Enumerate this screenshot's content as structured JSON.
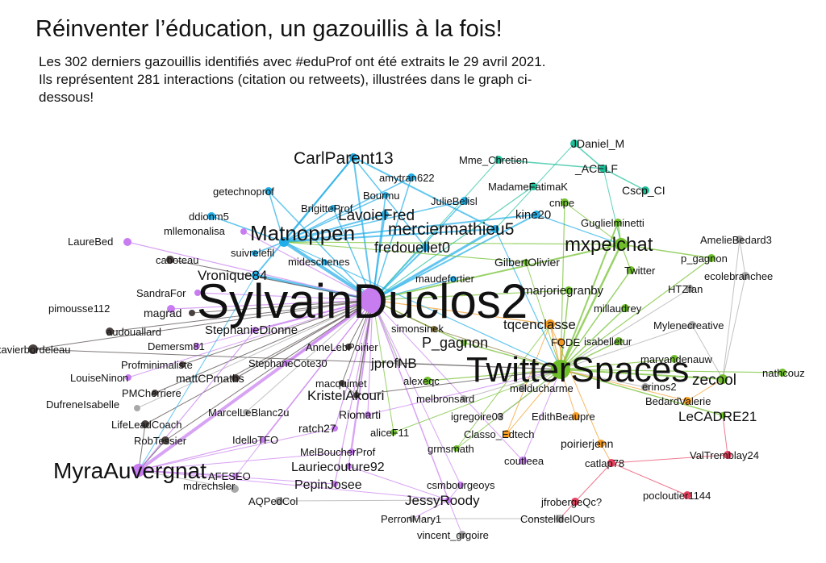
{
  "header": {
    "title": "Réinventer l’éducation, un gazouillis à la fois!",
    "subtitle": "Les 302 derniers gazouillis identifiés avec #eduProf  ont été extraits le 29 avril 2021. Ils représentent 281 interactions (citation ou retweets), illustrées dans le graph ci-dessous!"
  },
  "graph": {
    "community_colors": {
      "purple": "#c77cf0",
      "blue": "#22aee8",
      "teal": "#1dbf9a",
      "green": "#6fbf2a",
      "orange": "#f39a22",
      "red": "#e8405f",
      "dark": "#4a4240",
      "gray": "#a8a8a8",
      "olive": "#8a7a40"
    },
    "nodes": [
      {
        "id": "SylvainDuclos2",
        "label": "SylvainDuclos2",
        "community": "purple"
      },
      {
        "id": "TwitterSpaces",
        "label": "TwitterSpaces",
        "community": "green"
      },
      {
        "id": "MyraAuvergnat",
        "label": "MyraAuvergnat",
        "community": "purple"
      },
      {
        "id": "Matnoppen",
        "label": "Matnoppen",
        "community": "blue"
      },
      {
        "id": "mxpelchat",
        "label": "mxpelchat",
        "community": "green"
      },
      {
        "id": "CarlParent13",
        "label": "CarlParent13",
        "community": "blue"
      },
      {
        "id": "merciermathieu5",
        "label": "merciermathieu5",
        "community": "blue"
      },
      {
        "id": "LavoieFred",
        "label": "LavoieFred",
        "community": "blue"
      },
      {
        "id": "fredouellet0",
        "label": "fredouellet0",
        "community": "blue"
      },
      {
        "id": "Vronique84",
        "label": "Vronique84",
        "community": "blue"
      },
      {
        "id": "zecool",
        "label": "zecool",
        "community": "green"
      },
      {
        "id": "LeCADRE21",
        "label": "LeCADRE21",
        "community": "green"
      },
      {
        "id": "P_gagnon",
        "label": "P_gagnon",
        "community": "green"
      },
      {
        "id": "tqcenclasse",
        "label": "tqcenclasse",
        "community": "orange"
      },
      {
        "id": "jprofNB",
        "label": "jprofNB",
        "community": "gray"
      },
      {
        "id": "KristelAkouri",
        "label": "KristelAkouri",
        "community": "dark"
      },
      {
        "id": "JessyRoody",
        "label": "JessyRoody",
        "community": "purple"
      },
      {
        "id": "PepinJosee",
        "label": "PepinJosee",
        "community": "purple"
      },
      {
        "id": "Lauriecouture92",
        "label": "Lauriecouture92",
        "community": "purple"
      },
      {
        "id": "StephanieDionne",
        "label": "StephanieDionne",
        "community": "purple"
      },
      {
        "id": "kine20",
        "label": "kine20",
        "community": "blue"
      },
      {
        "id": "GilbertOlivier",
        "label": "GilbertOlivier",
        "community": "green"
      },
      {
        "id": "marjoriegranby",
        "label": "marjoriegranby",
        "community": "green"
      },
      {
        "id": "JDaniel_M",
        "label": "JDaniel_M",
        "community": "teal"
      },
      {
        "id": "Mme_Chretien",
        "label": "Mme_Chretien",
        "community": "teal"
      },
      {
        "id": "_ACELF",
        "label": "_ACELF",
        "community": "teal"
      },
      {
        "id": "Cscp_CI",
        "label": "Cscp_CI",
        "community": "teal"
      },
      {
        "id": "amytran622",
        "label": "amytran622",
        "community": "blue"
      },
      {
        "id": "getechnoprof",
        "label": "getechnoprof",
        "community": "blue"
      },
      {
        "id": "Bourmu",
        "label": "Bourmu",
        "community": "blue"
      },
      {
        "id": "MadameFatimaK",
        "label": "MadameFatimaK",
        "community": "teal"
      },
      {
        "id": "JulieBelisl",
        "label": "JulieBelisl",
        "community": "blue"
      },
      {
        "id": "cnipe",
        "label": "cnipe",
        "community": "green"
      },
      {
        "id": "ddionm5",
        "label": "ddionm5",
        "community": "blue"
      },
      {
        "id": "BrigitteProf",
        "label": "BrigitteProf",
        "community": "blue"
      },
      {
        "id": "Guglielminetti",
        "label": "Guglielminetti",
        "community": "green"
      },
      {
        "id": "mllemonalisa",
        "label": "mllemonalisa",
        "community": "purple"
      },
      {
        "id": "AmelieBedard3",
        "label": "AmelieBedard3",
        "community": "gray"
      },
      {
        "id": "LaureBed",
        "label": "LaureBed",
        "community": "purple"
      },
      {
        "id": "caboteau",
        "label": "caboteau",
        "community": "dark"
      },
      {
        "id": "suivrelefil",
        "label": "suivrelefil",
        "community": "blue"
      },
      {
        "id": "p_gagnon2",
        "label": "p_gagnon",
        "community": "green"
      },
      {
        "id": "mideschenes",
        "label": "mideschenes",
        "community": "blue"
      },
      {
        "id": "ecolebranchee",
        "label": "ecolebranchee",
        "community": "gray"
      },
      {
        "id": "Twitter",
        "label": "Twitter",
        "community": "green"
      },
      {
        "id": "maudefortier",
        "label": "maudefortier",
        "community": "blue"
      },
      {
        "id": "HTZfan",
        "label": "HTZfan",
        "community": "gray"
      },
      {
        "id": "SandraFor",
        "label": "SandraFor",
        "community": "purple"
      },
      {
        "id": "millaudrey",
        "label": "millaudrey",
        "community": "green"
      },
      {
        "id": "pimousse112",
        "label": "pimousse112",
        "community": "purple"
      },
      {
        "id": "magrad",
        "label": "magrad",
        "community": "dark"
      },
      {
        "id": "audouallard",
        "label": "audouallard",
        "community": "dark"
      },
      {
        "id": "Mylenecreative",
        "label": "Mylenecreative",
        "community": "gray"
      },
      {
        "id": "simonsinek",
        "label": "simonsinek",
        "community": "olive"
      },
      {
        "id": "isabelletur",
        "label": "isabelletur",
        "community": "green"
      },
      {
        "id": "xavierbordeleau",
        "label": "xavierbordeleau",
        "community": "dark"
      },
      {
        "id": "Demersm81",
        "label": "Demersm81",
        "community": "purple"
      },
      {
        "id": "AnneLebPoirier",
        "label": "AnneLebPoirier",
        "community": "dark"
      },
      {
        "id": "FQDE",
        "label": "FQDE",
        "community": "orange"
      },
      {
        "id": "Profminimaliste",
        "label": "Profminimaliste",
        "community": "dark"
      },
      {
        "id": "StephaneCote30",
        "label": "StephaneCote30",
        "community": "purple"
      },
      {
        "id": "marvandenauw",
        "label": "marvandenauw",
        "community": "green"
      },
      {
        "id": "nathcouz",
        "label": "nathcouz",
        "community": "green"
      },
      {
        "id": "LouiseNinon",
        "label": "LouiseNinon",
        "community": "purple"
      },
      {
        "id": "mattCPmaths",
        "label": "mattCPmaths",
        "community": "dark"
      },
      {
        "id": "macquimet",
        "label": "macquimet",
        "community": "dark"
      },
      {
        "id": "alexeqc",
        "label": "alexeqc",
        "community": "green"
      },
      {
        "id": "melducharme",
        "label": "melducharme",
        "community": "gray"
      },
      {
        "id": "erinos2",
        "label": "erinos2",
        "community": "gray"
      },
      {
        "id": "PMCherriere",
        "label": "PMCherriere",
        "community": "dark"
      },
      {
        "id": "melbronsard",
        "label": "melbronsard",
        "community": "gray"
      },
      {
        "id": "BedardValerie",
        "label": "BedardValerie",
        "community": "orange"
      },
      {
        "id": "DufreneIsabelle",
        "label": "DufreneIsabelle",
        "community": "gray"
      },
      {
        "id": "MarcelLeBlanc2u",
        "label": "MarcelLeBlanc2u",
        "community": "gray"
      },
      {
        "id": "Riomarti",
        "label": "Riomarti",
        "community": "purple"
      },
      {
        "id": "igregoire03",
        "label": "igregoire03",
        "community": "gray"
      },
      {
        "id": "EdithBeaupre",
        "label": "EdithBeaupre",
        "community": "orange"
      },
      {
        "id": "LifeLeadCoach",
        "label": "LifeLeadCoach",
        "community": "dark"
      },
      {
        "id": "ratch27",
        "label": "ratch27",
        "community": "purple"
      },
      {
        "id": "aliceF11",
        "label": "aliceF11",
        "community": "green"
      },
      {
        "id": "Classo_Edtech",
        "label": "Classo_Edtech",
        "community": "orange"
      },
      {
        "id": "RobTessier",
        "label": "RobTessier",
        "community": "dark"
      },
      {
        "id": "IdelloTFO",
        "label": "IdelloTFO",
        "community": "purple"
      },
      {
        "id": "poirierjenn",
        "label": "poirierjenn",
        "community": "orange"
      },
      {
        "id": "ValTremblay24",
        "label": "ValTremblay24",
        "community": "red"
      },
      {
        "id": "grmsmath",
        "label": "grmsmath",
        "community": "green"
      },
      {
        "id": "MelBoucherProf",
        "label": "MelBoucherProf",
        "community": "purple"
      },
      {
        "id": "coutleea",
        "label": "coutleea",
        "community": "purple"
      },
      {
        "id": "catlap78",
        "label": "catlap78",
        "community": "red"
      },
      {
        "id": "AFESEO",
        "label": "AFESEO",
        "community": "purple"
      },
      {
        "id": "mdrechsler",
        "label": "mdrechsler",
        "community": "gray"
      },
      {
        "id": "csmbourgeoys",
        "label": "csmbourgeoys",
        "community": "purple"
      },
      {
        "id": "pocloutier1144",
        "label": "pocloutier1144",
        "community": "red"
      },
      {
        "id": "AQPedCol",
        "label": "AQPedCol",
        "community": "gray"
      },
      {
        "id": "jfrobergeQc",
        "label": "jfrobergeQc?",
        "community": "red"
      },
      {
        "id": "PerronMary1",
        "label": "PerronMary1",
        "community": "gray"
      },
      {
        "id": "ConstelldelOurs",
        "label": "ConstelldelOurs",
        "community": "gray"
      },
      {
        "id": "vincent_grgoire",
        "label": "vincent_grgoire",
        "community": "gray"
      }
    ]
  }
}
